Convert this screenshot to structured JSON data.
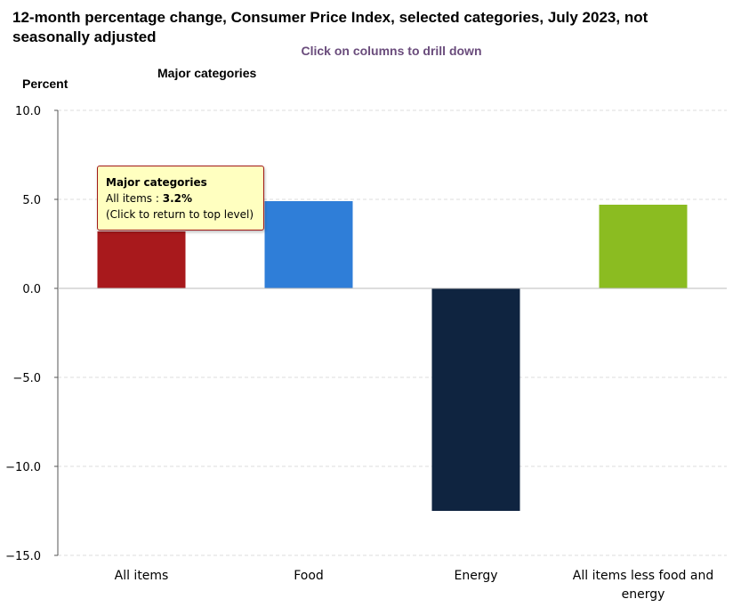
{
  "chart_data": {
    "type": "bar",
    "title_line1": "12-month percentage change, Consumer Price Index, selected categories, July 2023, not",
    "title_line2": "seasonally adjusted",
    "drilldown_hint": "Click on columns to drill down",
    "subtitle": "Major categories",
    "ylabel": "Percent",
    "ylim": [
      -15.0,
      10.0
    ],
    "yticks": [
      "10.0",
      "5.0",
      "0.0",
      "−5.0",
      "−10.0",
      "−15.0"
    ],
    "ytick_values": [
      10,
      5,
      0,
      -5,
      -10,
      -15
    ],
    "categories": [
      "All items",
      "Food",
      "Energy",
      "All items less food and energy"
    ],
    "category_lines": [
      [
        "All items"
      ],
      [
        "Food"
      ],
      [
        "Energy"
      ],
      [
        "All items less food and",
        "energy"
      ]
    ],
    "values": [
      3.2,
      4.9,
      -12.5,
      4.7
    ],
    "colors": [
      "#a8191c",
      "#2f7ed8",
      "#0f2440",
      "#8bbc21"
    ],
    "grid": true,
    "tooltip": {
      "header": "Major categories",
      "label": "All items : ",
      "value": "3.2%",
      "hint": "(Click to return to top level)"
    }
  },
  "colors": {
    "drilldown_hint": "#6a4c7c",
    "grid": "#dddddd",
    "axis": "#555555"
  }
}
